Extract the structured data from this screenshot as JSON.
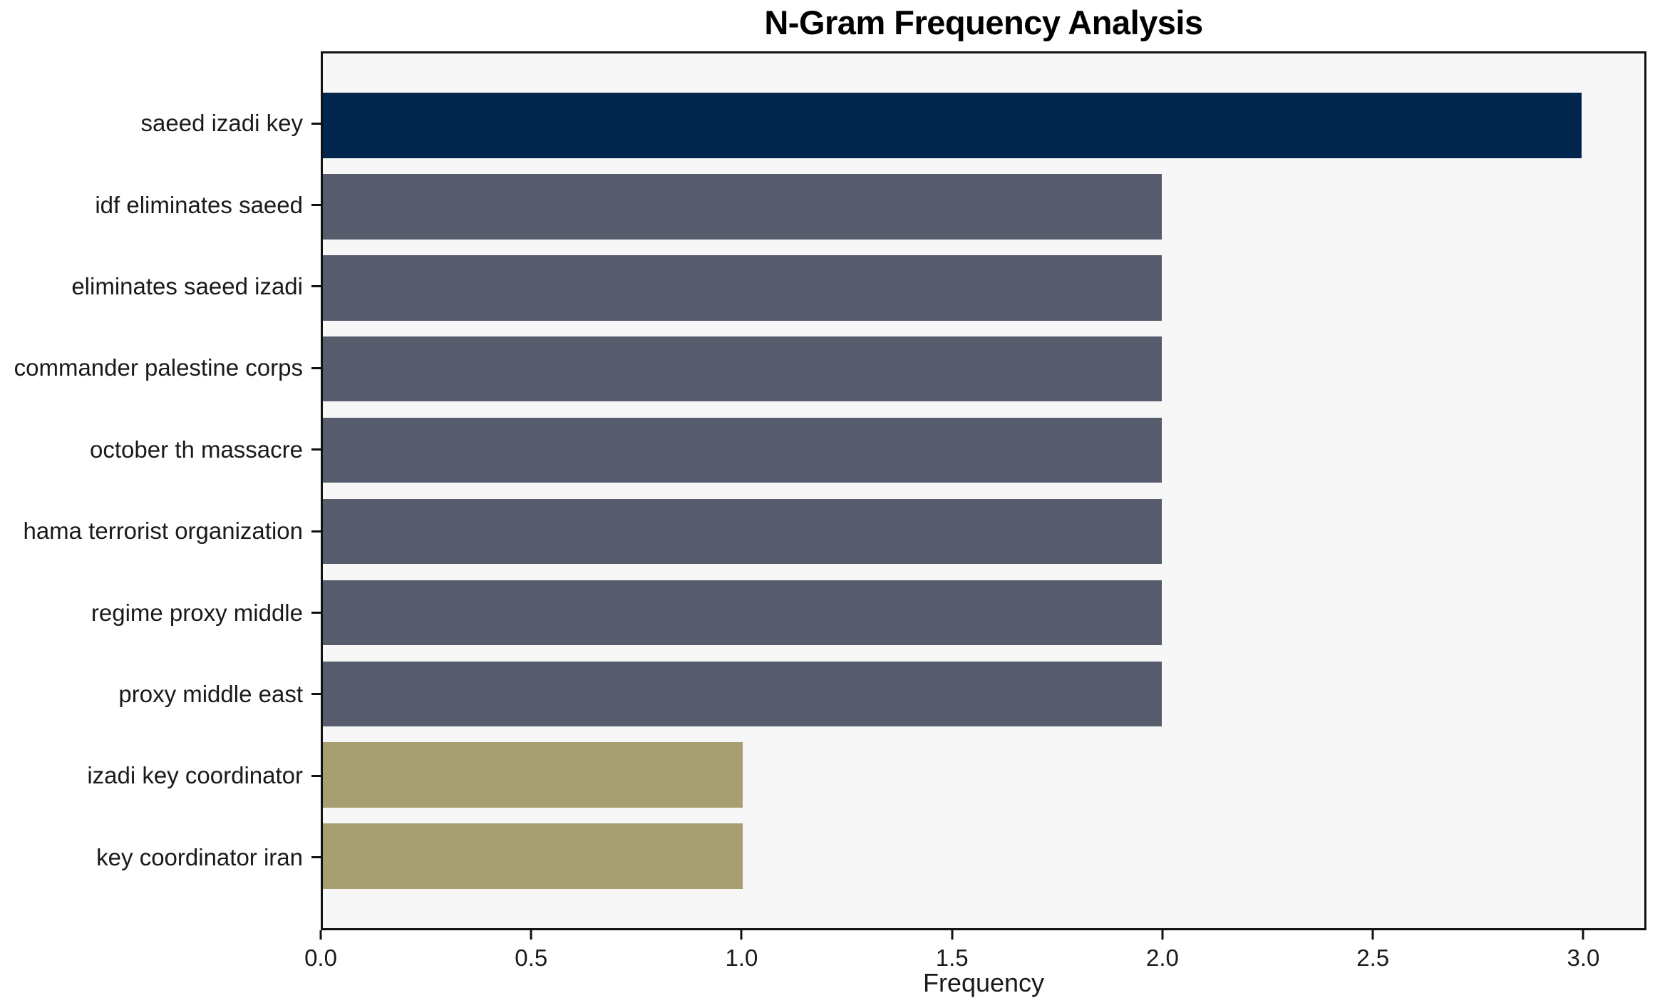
{
  "title": "N-Gram Frequency Analysis",
  "chart_data": {
    "type": "bar",
    "orientation": "horizontal",
    "title": "N-Gram Frequency Analysis",
    "xlabel": "Frequency",
    "ylabel": "",
    "categories": [
      "saeed izadi key",
      "idf eliminates saeed",
      "eliminates saeed izadi",
      "commander palestine corps",
      "october th massacre",
      "hama terrorist organization",
      "regime proxy middle",
      "proxy middle east",
      "izadi key coordinator",
      "key coordinator iran"
    ],
    "values": [
      3,
      2,
      2,
      2,
      2,
      2,
      2,
      2,
      1,
      1
    ],
    "bar_colors": [
      "#02254e",
      "#575d6c",
      "#575d6c",
      "#575d6c",
      "#575d6c",
      "#575d6c",
      "#575d6c",
      "#575d6c",
      "#a79e71",
      "#a79e71"
    ],
    "xlim": [
      0,
      3.15
    ],
    "xtick_values": [
      0.0,
      0.5,
      1.0,
      1.5,
      2.0,
      2.5,
      3.0
    ],
    "xtick_labels": [
      "0.0",
      "0.5",
      "1.0",
      "1.5",
      "2.0",
      "2.5",
      "3.0"
    ],
    "grid": false,
    "legend": null,
    "plot_background": "#f7f7f8",
    "figure_background": "#ffffff"
  }
}
